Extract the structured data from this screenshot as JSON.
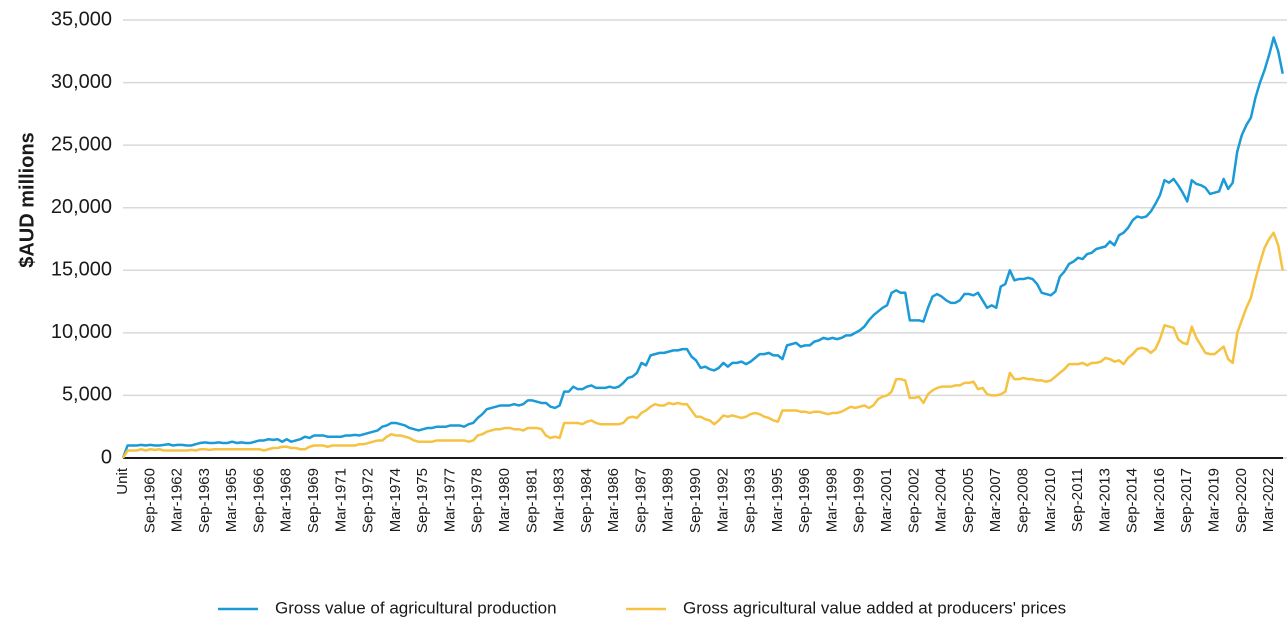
{
  "chart_data": {
    "type": "line",
    "y_label": "$AUD millions",
    "ylim": [
      0,
      35000
    ],
    "yticks": [
      0,
      {
        "value": 5000,
        "label": "5,000"
      },
      {
        "value": 10000,
        "label": "10,000"
      },
      {
        "value": 15000,
        "label": "15,000"
      },
      {
        "value": 20000,
        "label": "20,000"
      },
      {
        "value": 25000,
        "label": "25,000"
      },
      {
        "value": 30000,
        "label": "30,000"
      },
      {
        "value": 35000,
        "label": "35,000"
      }
    ],
    "grid": true,
    "legend": "bottom",
    "categories": [
      "Unit",
      null,
      null,
      null,
      null,
      null,
      "Sep-1960",
      null,
      null,
      null,
      null,
      null,
      "Mar-1962",
      null,
      null,
      null,
      null,
      null,
      "Sep-1963",
      null,
      null,
      null,
      null,
      null,
      "Mar-1965",
      null,
      null,
      null,
      null,
      null,
      "Sep-1966",
      null,
      null,
      null,
      null,
      null,
      "Mar-1968",
      null,
      null,
      null,
      null,
      null,
      "Sep-1969",
      null,
      null,
      null,
      null,
      null,
      "Mar-1971",
      null,
      null,
      null,
      null,
      null,
      "Sep-1972",
      null,
      null,
      null,
      null,
      null,
      "Mar-1974",
      null,
      null,
      null,
      null,
      null,
      "Sep-1975",
      null,
      null,
      null,
      null,
      null,
      "Mar-1977",
      null,
      null,
      null,
      null,
      null,
      "Sep-1978",
      null,
      null,
      null,
      null,
      null,
      "Mar-1980",
      null,
      null,
      null,
      null,
      null,
      "Sep-1981",
      null,
      null,
      null,
      null,
      null,
      "Mar-1983",
      null,
      null,
      null,
      null,
      null,
      "Sep-1984",
      null,
      null,
      null,
      null,
      null,
      "Mar-1986",
      null,
      null,
      null,
      null,
      null,
      "Sep-1987",
      null,
      null,
      null,
      null,
      null,
      "Mar-1989",
      null,
      null,
      null,
      null,
      null,
      "Sep-1990",
      null,
      null,
      null,
      null,
      null,
      "Mar-1992",
      null,
      null,
      null,
      null,
      null,
      "Sep-1993",
      null,
      null,
      null,
      null,
      null,
      "Mar-1995",
      null,
      null,
      null,
      null,
      null,
      "Sep-1996",
      null,
      null,
      null,
      null,
      null,
      "Mar-1998",
      null,
      null,
      null,
      null,
      null,
      "Sep-1999",
      null,
      null,
      null,
      null,
      null,
      "Mar-2001",
      null,
      null,
      null,
      null,
      null,
      "Sep-2002",
      null,
      null,
      null,
      null,
      null,
      "Mar-2004",
      null,
      null,
      null,
      null,
      null,
      "Sep-2005",
      null,
      null,
      null,
      null,
      null,
      "Mar-2007",
      null,
      null,
      null,
      null,
      null,
      "Sep-2008",
      null,
      null,
      null,
      null,
      null,
      "Mar-2010",
      null,
      null,
      null,
      null,
      null,
      "Sep-2011",
      null,
      null,
      null,
      null,
      null,
      "Mar-2013",
      null,
      null,
      null,
      null,
      null,
      "Sep-2014",
      null,
      null,
      null,
      null,
      null,
      "Mar-2016",
      null,
      null,
      null,
      null,
      null,
      "Sep-2017",
      null,
      null,
      null,
      null,
      null,
      "Mar-2019",
      null,
      null,
      null,
      null,
      null,
      "Sep-2020",
      null,
      null,
      null,
      null,
      null,
      "Mar-2022",
      null,
      null,
      null
    ],
    "series": [
      {
        "name": "Gross value of agricultural production",
        "color": "#1a9ad6",
        "values": [
          0,
          1000,
          1000,
          1000,
          1050,
          1000,
          1050,
          1000,
          1000,
          1050,
          1100,
          1000,
          1050,
          1050,
          1000,
          1000,
          1100,
          1200,
          1250,
          1200,
          1200,
          1250,
          1200,
          1200,
          1300,
          1200,
          1250,
          1200,
          1200,
          1300,
          1400,
          1400,
          1500,
          1450,
          1500,
          1300,
          1500,
          1300,
          1400,
          1500,
          1700,
          1600,
          1800,
          1800,
          1800,
          1700,
          1700,
          1700,
          1700,
          1800,
          1800,
          1850,
          1800,
          1900,
          2000,
          2100,
          2200,
          2500,
          2600,
          2800,
          2800,
          2700,
          2600,
          2400,
          2300,
          2200,
          2300,
          2400,
          2400,
          2500,
          2500,
          2500,
          2600,
          2600,
          2600,
          2500,
          2700,
          2800,
          3200,
          3500,
          3900,
          4000,
          4100,
          4200,
          4200,
          4200,
          4300,
          4200,
          4300,
          4600,
          4600,
          4500,
          4400,
          4400,
          4100,
          4000,
          4200,
          5300,
          5300,
          5700,
          5500,
          5500,
          5700,
          5800,
          5600,
          5600,
          5600,
          5700,
          5600,
          5700,
          6000,
          6400,
          6500,
          6800,
          7600,
          7400,
          8200,
          8300,
          8400,
          8400,
          8500,
          8600,
          8600,
          8700,
          8700,
          8100,
          7800,
          7200,
          7300,
          7100,
          7000,
          7200,
          7600,
          7300,
          7600,
          7600,
          7700,
          7500,
          7700,
          8000,
          8300,
          8300,
          8400,
          8200,
          8200,
          7900,
          9000,
          9100,
          9200,
          8900,
          9000,
          9000,
          9300,
          9400,
          9600,
          9500,
          9600,
          9500,
          9600,
          9800,
          9800,
          10000,
          10200,
          10500,
          11000,
          11400,
          11700,
          12000,
          12200,
          13200,
          13400,
          13200,
          13200,
          11000,
          11000,
          11000,
          10900,
          12000,
          12900,
          13100,
          12900,
          12600,
          12400,
          12400,
          12600,
          13100,
          13100,
          13000,
          13200,
          12600,
          12000,
          12200,
          12000,
          13700,
          13900,
          15000,
          14200,
          14300,
          14300,
          14400,
          14300,
          13900,
          13200,
          13100,
          13000,
          13300,
          14500,
          14900,
          15500,
          15700,
          16000,
          15900,
          16300,
          16400,
          16700,
          16800,
          16900,
          17300,
          17000,
          17800,
          18000,
          18400,
          19000,
          19300,
          19200,
          19300,
          19700,
          20300,
          21000,
          22200,
          22000,
          22300,
          21800,
          21200,
          20500,
          22200,
          21900,
          21800,
          21600,
          21100,
          21200,
          21300,
          22300,
          21500,
          22000,
          24500,
          25800,
          26600,
          27200,
          28800,
          30000,
          31000,
          32200,
          33600,
          32500,
          30700
        ]
      },
      {
        "name": "Gross agricultural value added at producers' prices",
        "color": "#f5c242",
        "values": [
          0,
          600,
          600,
          600,
          700,
          600,
          700,
          650,
          700,
          600,
          600,
          600,
          600,
          600,
          600,
          650,
          600,
          700,
          700,
          650,
          700,
          700,
          700,
          700,
          700,
          700,
          700,
          700,
          700,
          700,
          700,
          600,
          700,
          800,
          800,
          900,
          900,
          800,
          800,
          700,
          700,
          900,
          1000,
          1000,
          1000,
          900,
          1000,
          1000,
          1000,
          1000,
          1000,
          1000,
          1100,
          1100,
          1200,
          1300,
          1400,
          1400,
          1700,
          1900,
          1800,
          1800,
          1700,
          1600,
          1400,
          1300,
          1300,
          1300,
          1300,
          1400,
          1400,
          1400,
          1400,
          1400,
          1400,
          1400,
          1300,
          1400,
          1800,
          1900,
          2100,
          2200,
          2300,
          2300,
          2400,
          2400,
          2300,
          2300,
          2200,
          2400,
          2400,
          2400,
          2300,
          1800,
          1600,
          1700,
          1600,
          2800,
          2800,
          2800,
          2800,
          2700,
          2900,
          3000,
          2800,
          2700,
          2700,
          2700,
          2700,
          2700,
          2800,
          3200,
          3300,
          3200,
          3600,
          3800,
          4100,
          4300,
          4200,
          4200,
          4400,
          4300,
          4400,
          4300,
          4300,
          3800,
          3300,
          3300,
          3100,
          3000,
          2700,
          3000,
          3400,
          3300,
          3400,
          3300,
          3200,
          3300,
          3500,
          3600,
          3500,
          3300,
          3200,
          3000,
          2900,
          3800,
          3800,
          3800,
          3800,
          3700,
          3700,
          3600,
          3700,
          3700,
          3600,
          3500,
          3600,
          3600,
          3700,
          3900,
          4100,
          4000,
          4100,
          4200,
          4000,
          4200,
          4700,
          4900,
          5000,
          5300,
          6300,
          6300,
          6200,
          4800,
          4800,
          4900,
          4400,
          5100,
          5400,
          5600,
          5700,
          5700,
          5700,
          5800,
          5800,
          6000,
          6000,
          6100,
          5500,
          5600,
          5100,
          5000,
          5000,
          5100,
          5300,
          6800,
          6300,
          6300,
          6400,
          6300,
          6300,
          6200,
          6200,
          6100,
          6200,
          6500,
          6800,
          7100,
          7500,
          7500,
          7500,
          7600,
          7400,
          7600,
          7600,
          7700,
          8000,
          7900,
          7700,
          7800,
          7500,
          8000,
          8300,
          8700,
          8800,
          8700,
          8400,
          8700,
          9500,
          10600,
          10500,
          10400,
          9500,
          9200,
          9100,
          10500,
          9600,
          9000,
          8400,
          8300,
          8300,
          8600,
          8900,
          7900,
          7600,
          10000,
          11000,
          12000,
          12800,
          14300,
          15600,
          16800,
          17500,
          18000,
          17000,
          15000
        ]
      }
    ]
  }
}
